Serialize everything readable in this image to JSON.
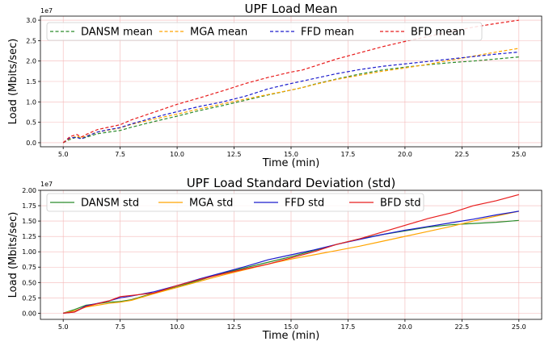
{
  "colors": {
    "DANSM": "#2a8a2a",
    "MGA": "#ffa500",
    "FFD": "#1a1acc",
    "BFD": "#e81c1c",
    "grid": "#f4b8b8"
  },
  "chart_data": [
    {
      "type": "line",
      "title": "UPF Load Mean",
      "xlabel": "Time (min)",
      "ylabel": "Load (Mbits/sec)",
      "offset_text": "1e7",
      "xlim": [
        4.0,
        26.0
      ],
      "ylim": [
        -0.1,
        3.1
      ],
      "x_ticks": [
        5.0,
        7.5,
        10.0,
        12.5,
        15.0,
        17.5,
        20.0,
        22.5,
        25.0
      ],
      "x_tick_labels": [
        "5.0",
        "7.5",
        "10.0",
        "12.5",
        "15.0",
        "17.5",
        "20.0",
        "22.5",
        "25.0"
      ],
      "y_ticks": [
        0.0,
        0.5,
        1.0,
        1.5,
        2.0,
        2.5,
        3.0
      ],
      "y_tick_labels": [
        "0.0",
        "0.5",
        "1.0",
        "1.5",
        "2.0",
        "2.5",
        "3.0"
      ],
      "grid": true,
      "legend_position": "top",
      "line_style": "dashed",
      "x": [
        5.0,
        5.3,
        5.6,
        5.8,
        6.0,
        6.5,
        7.0,
        7.5,
        8.0,
        9.0,
        10.0,
        11.0,
        12.0,
        13.0,
        14.0,
        15.0,
        15.5,
        16.0,
        17.0,
        18.0,
        19.0,
        20.0,
        21.0,
        22.0,
        23.0,
        24.0,
        25.0
      ],
      "series": [
        {
          "name": "DANSM mean",
          "color_key": "DANSM",
          "values": [
            0.0,
            0.08,
            0.14,
            0.1,
            0.13,
            0.22,
            0.26,
            0.3,
            0.38,
            0.52,
            0.65,
            0.79,
            0.91,
            1.04,
            1.17,
            1.29,
            1.35,
            1.43,
            1.56,
            1.68,
            1.78,
            1.85,
            1.91,
            1.96,
            2.0,
            2.05,
            2.1
          ]
        },
        {
          "name": "MGA mean",
          "color_key": "MGA",
          "values": [
            0.0,
            0.1,
            0.16,
            0.12,
            0.16,
            0.26,
            0.31,
            0.36,
            0.45,
            0.58,
            0.7,
            0.83,
            0.95,
            1.07,
            1.18,
            1.29,
            1.35,
            1.42,
            1.55,
            1.65,
            1.75,
            1.83,
            1.92,
            2.02,
            2.12,
            2.22,
            2.31
          ]
        },
        {
          "name": "FFD mean",
          "color_key": "FFD",
          "values": [
            0.0,
            0.12,
            0.13,
            0.09,
            0.15,
            0.26,
            0.32,
            0.37,
            0.46,
            0.62,
            0.76,
            0.89,
            1.0,
            1.14,
            1.32,
            1.45,
            1.51,
            1.57,
            1.69,
            1.79,
            1.87,
            1.93,
            1.99,
            2.05,
            2.11,
            2.17,
            2.22
          ]
        },
        {
          "name": "BFD mean",
          "color_key": "BFD",
          "values": [
            0.0,
            0.15,
            0.2,
            0.14,
            0.2,
            0.32,
            0.38,
            0.44,
            0.56,
            0.75,
            0.94,
            1.1,
            1.27,
            1.45,
            1.6,
            1.73,
            1.78,
            1.87,
            2.05,
            2.2,
            2.35,
            2.48,
            2.6,
            2.72,
            2.83,
            2.92,
            3.0
          ]
        }
      ]
    },
    {
      "type": "line",
      "title": "UPF Load Standard Deviation (std)",
      "xlabel": "Time (min)",
      "ylabel": "Load (Mbits/sec)",
      "offset_text": "1e7",
      "xlim": [
        4.0,
        26.0
      ],
      "ylim": [
        -0.1,
        2.0
      ],
      "x_ticks": [
        5.0,
        7.5,
        10.0,
        12.5,
        15.0,
        17.5,
        20.0,
        22.5,
        25.0
      ],
      "x_tick_labels": [
        "5.0",
        "7.5",
        "10.0",
        "12.5",
        "15.0",
        "17.5",
        "20.0",
        "22.5",
        "25.0"
      ],
      "y_ticks": [
        0.0,
        0.25,
        0.5,
        0.75,
        1.0,
        1.25,
        1.5,
        1.75,
        2.0
      ],
      "y_tick_labels": [
        "0.00",
        "0.25",
        "0.50",
        "0.75",
        "1.00",
        "1.25",
        "1.50",
        "1.75",
        "2.00"
      ],
      "grid": true,
      "legend_position": "top",
      "line_style": "solid",
      "x": [
        5.0,
        5.5,
        6.0,
        7.0,
        7.5,
        8.0,
        9.0,
        10.0,
        11.0,
        12.0,
        13.0,
        14.0,
        15.0,
        16.0,
        17.0,
        18.0,
        19.0,
        20.0,
        21.0,
        22.0,
        23.0,
        24.0,
        25.0
      ],
      "series": [
        {
          "name": "DANSM std",
          "color_key": "DANSM",
          "values": [
            0.0,
            0.06,
            0.13,
            0.18,
            0.19,
            0.22,
            0.33,
            0.43,
            0.54,
            0.65,
            0.74,
            0.83,
            0.92,
            1.02,
            1.12,
            1.21,
            1.28,
            1.34,
            1.4,
            1.44,
            1.46,
            1.48,
            1.51
          ]
        },
        {
          "name": "MGA std",
          "color_key": "MGA",
          "values": [
            0.0,
            0.04,
            0.1,
            0.16,
            0.18,
            0.21,
            0.32,
            0.42,
            0.52,
            0.62,
            0.71,
            0.8,
            0.88,
            0.95,
            1.02,
            1.09,
            1.17,
            1.25,
            1.33,
            1.41,
            1.5,
            1.58,
            1.66
          ]
        },
        {
          "name": "FFD std",
          "color_key": "FFD",
          "values": [
            0.0,
            0.02,
            0.12,
            0.2,
            0.25,
            0.28,
            0.35,
            0.45,
            0.56,
            0.66,
            0.76,
            0.87,
            0.95,
            1.03,
            1.12,
            1.2,
            1.28,
            1.35,
            1.41,
            1.47,
            1.53,
            1.6,
            1.66
          ]
        },
        {
          "name": "BFD std",
          "color_key": "BFD",
          "values": [
            0.0,
            0.02,
            0.11,
            0.2,
            0.27,
            0.29,
            0.33,
            0.45,
            0.55,
            0.64,
            0.72,
            0.8,
            0.9,
            1.0,
            1.12,
            1.21,
            1.32,
            1.43,
            1.54,
            1.63,
            1.75,
            1.83,
            1.93
          ]
        }
      ]
    }
  ]
}
